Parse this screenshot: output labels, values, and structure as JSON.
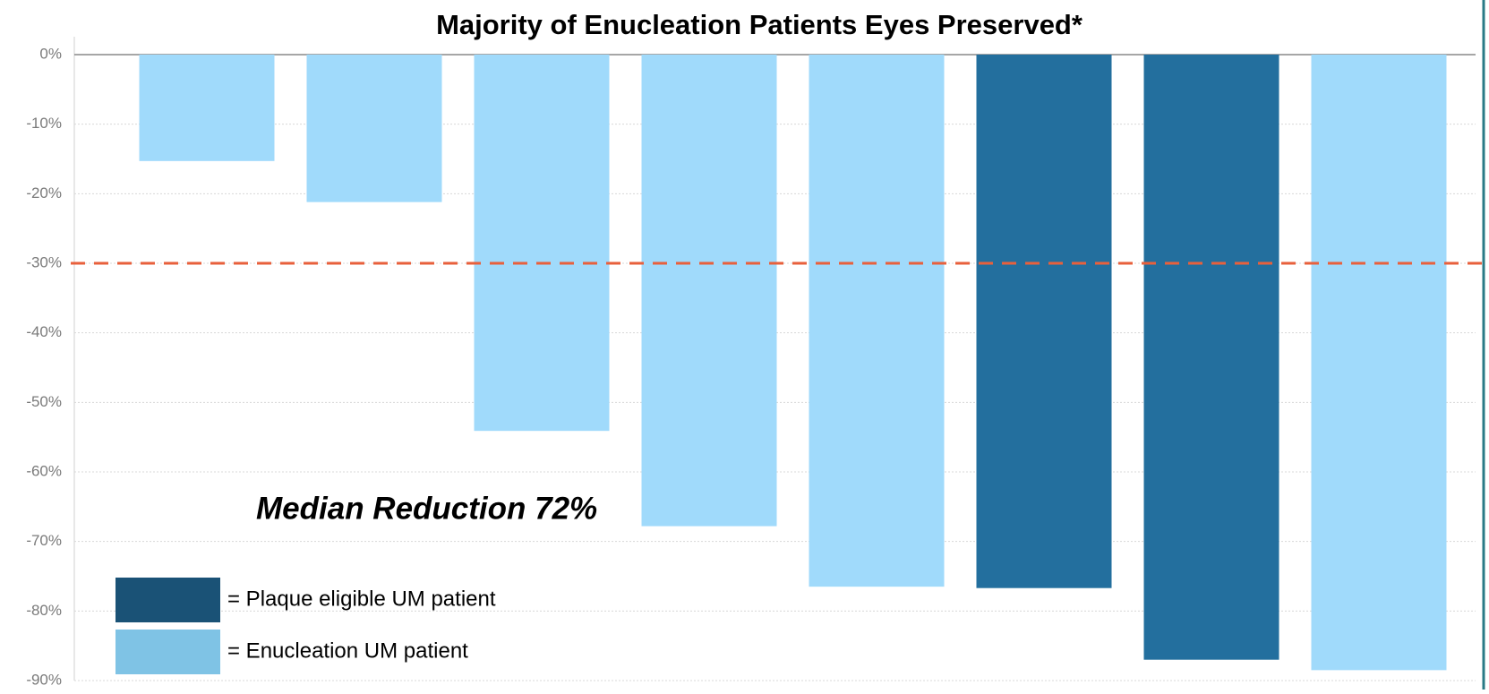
{
  "chart_data": {
    "type": "bar",
    "title": "Majority of Enucleation Patients Eyes Preserved*",
    "values": [
      -15.3,
      -21.2,
      -54.1,
      -67.8,
      -76.5,
      -76.7,
      -87,
      -88.5
    ],
    "colors": [
      "#a0dafb",
      "#a0dafb",
      "#a0dafb",
      "#a0dafb",
      "#a0dafb",
      "#236f9e",
      "#236f9e",
      "#a0dafb"
    ],
    "ylim": [
      -90,
      0
    ],
    "yticks": [
      {
        "value": 0,
        "label": "0%"
      },
      {
        "value": -10,
        "label": "-10%"
      },
      {
        "value": -20,
        "label": "-20%"
      },
      {
        "value": -30,
        "label": "-30%"
      },
      {
        "value": -40,
        "label": "-40%"
      },
      {
        "value": -50,
        "label": "-50%"
      },
      {
        "value": -60,
        "label": "-60%"
      },
      {
        "value": -70,
        "label": "-70%"
      },
      {
        "value": -80,
        "label": "-80%"
      },
      {
        "value": -90,
        "label": "-90%"
      }
    ],
    "grid": true,
    "reference_line": {
      "value": -30,
      "color": "#e8603c"
    },
    "annotation": "Median Reduction 72%",
    "legend": [
      {
        "label": "= Plaque eligible UM patient",
        "color": "#1a5276"
      },
      {
        "label": "= Enucleation UM patient",
        "color": "#7fc3e5"
      }
    ],
    "legend_position": "lower left"
  }
}
